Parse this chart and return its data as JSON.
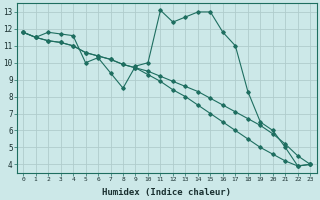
{
  "xlabel": "Humidex (Indice chaleur)",
  "background_color": "#cce8e8",
  "grid_color": "#b0cccc",
  "line_color": "#1e6e60",
  "xlim": [
    -0.5,
    23.5
  ],
  "ylim": [
    3.5,
    13.5
  ],
  "xticks": [
    0,
    1,
    2,
    3,
    4,
    5,
    6,
    7,
    8,
    9,
    10,
    11,
    12,
    13,
    14,
    15,
    16,
    17,
    18,
    19,
    20,
    21,
    22,
    23
  ],
  "yticks": [
    4,
    5,
    6,
    7,
    8,
    9,
    10,
    11,
    12,
    13
  ],
  "series": [
    {
      "x": [
        0,
        1,
        2,
        3,
        4,
        5,
        6,
        7,
        8,
        9,
        10,
        11,
        12,
        13,
        14,
        15,
        16,
        17,
        18,
        19,
        20,
        21,
        22,
        23
      ],
      "y": [
        11.8,
        11.5,
        11.8,
        11.7,
        11.6,
        10.0,
        10.3,
        9.4,
        8.5,
        9.8,
        10.0,
        13.1,
        12.4,
        12.7,
        13.0,
        13.0,
        11.8,
        11.0,
        8.3,
        6.5,
        6.0,
        5.0,
        3.9,
        4.0
      ]
    },
    {
      "x": [
        0,
        1,
        2,
        3,
        4,
        5,
        6,
        7,
        8,
        9,
        10,
        11,
        12,
        13,
        14,
        15,
        16,
        17,
        18,
        19,
        20,
        21,
        22,
        23
      ],
      "y": [
        11.8,
        11.5,
        11.3,
        11.2,
        11.0,
        10.6,
        10.4,
        10.2,
        9.9,
        9.7,
        9.5,
        9.2,
        8.9,
        8.6,
        8.3,
        7.9,
        7.5,
        7.1,
        6.7,
        6.3,
        5.8,
        5.2,
        4.5,
        4.0
      ]
    },
    {
      "x": [
        0,
        1,
        2,
        3,
        4,
        5,
        6,
        7,
        8,
        9,
        10,
        11,
        12,
        13,
        14,
        15,
        16,
        17,
        18,
        19,
        20,
        21,
        22,
        23
      ],
      "y": [
        11.8,
        11.5,
        11.3,
        11.2,
        11.0,
        10.6,
        10.4,
        10.2,
        9.9,
        9.7,
        9.3,
        8.9,
        8.4,
        8.0,
        7.5,
        7.0,
        6.5,
        6.0,
        5.5,
        5.0,
        4.6,
        4.2,
        3.9,
        4.0
      ]
    }
  ]
}
